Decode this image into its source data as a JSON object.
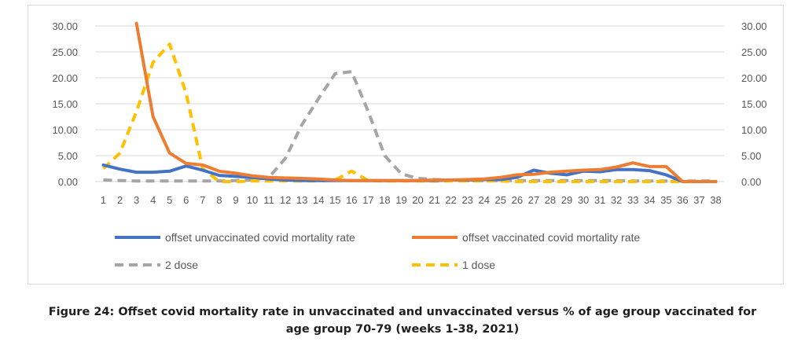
{
  "chart_data": {
    "type": "line",
    "title": "",
    "xlabel": "",
    "ylabel": "",
    "ylim": [
      0,
      30
    ],
    "y2lim": [
      0,
      30
    ],
    "yticks": [
      "0.00",
      "5.00",
      "10.00",
      "15.00",
      "20.00",
      "25.00",
      "30.00"
    ],
    "y2ticks": [
      "0.00",
      "5.00",
      "10.00",
      "15.00",
      "20.00",
      "25.00",
      "30.00"
    ],
    "categories": [
      "1",
      "2",
      "3",
      "4",
      "5",
      "6",
      "7",
      "8",
      "9",
      "10",
      "11",
      "12",
      "13",
      "14",
      "15",
      "16",
      "17",
      "18",
      "19",
      "20",
      "21",
      "22",
      "23",
      "24",
      "25",
      "26",
      "27",
      "28",
      "29",
      "30",
      "31",
      "32",
      "33",
      "34",
      "35",
      "36",
      "37",
      "38"
    ],
    "grid": "horizontal",
    "legend_position": "bottom",
    "series": [
      {
        "name": "offset unvaccinated covid mortality rate",
        "color": "#4472c4",
        "style": "solid",
        "axis": "left",
        "values": [
          3.2,
          2.4,
          1.8,
          1.8,
          2.0,
          3.0,
          2.2,
          1.2,
          1.0,
          0.8,
          0.5,
          0.3,
          0.2,
          0.2,
          0.2,
          0.2,
          0.2,
          0.2,
          0.2,
          0.2,
          0.2,
          0.3,
          0.3,
          0.4,
          0.4,
          0.8,
          2.2,
          1.6,
          1.3,
          2.0,
          1.9,
          2.3,
          2.3,
          2.1,
          1.3,
          0.0,
          0.0,
          0.0
        ]
      },
      {
        "name": "offset vaccinated covid mortality rate",
        "color": "#ed7d31",
        "style": "solid",
        "axis": "left",
        "values": [
          null,
          null,
          30.5,
          12.5,
          5.5,
          3.5,
          3.2,
          2.0,
          1.6,
          1.1,
          0.8,
          0.7,
          0.6,
          0.5,
          0.3,
          0.2,
          0.2,
          0.2,
          0.2,
          0.2,
          0.3,
          0.3,
          0.4,
          0.5,
          0.8,
          1.3,
          1.4,
          1.8,
          2.0,
          2.2,
          2.3,
          2.8,
          3.6,
          2.9,
          2.9,
          0.0,
          0.0,
          0.0
        ]
      },
      {
        "name": "2 dose",
        "color": "#a5a5a5",
        "style": "dashed",
        "axis": "right",
        "values": [
          0.3,
          0.2,
          0.1,
          0.1,
          0.1,
          0.1,
          0.1,
          0.1,
          0.2,
          0.3,
          0.8,
          4.5,
          11.0,
          16.0,
          20.8,
          21.2,
          13.5,
          5.0,
          1.5,
          0.6,
          0.4,
          0.3,
          0.2,
          0.2,
          0.2,
          0.2,
          0.2,
          0.2,
          0.2,
          0.2,
          0.2,
          0.2,
          0.1,
          0.1,
          0.1,
          0.1,
          0.1,
          0.1
        ]
      },
      {
        "name": "1 dose",
        "color": "#ffc000",
        "style": "dashed",
        "axis": "right",
        "values": [
          2.5,
          5.5,
          13.5,
          23.0,
          26.5,
          17.0,
          2.5,
          0.0,
          0.0,
          0.1,
          0.1,
          0.1,
          0.1,
          0.1,
          0.3,
          2.0,
          0.2,
          0.1,
          0.1,
          0.1,
          0.1,
          0.1,
          0.1,
          0.1,
          0.1,
          0.0,
          0.0,
          0.0,
          0.0,
          0.0,
          0.0,
          0.0,
          0.0,
          0.0,
          0.0,
          0.0,
          0.0,
          0.0
        ]
      }
    ]
  },
  "caption": {
    "line1": "Figure 24:  Offset covid mortality rate in unvaccinated and unvaccinated versus % of age group vaccinated for",
    "line2": "age group 70-79 (weeks 1-38, 2021)"
  }
}
